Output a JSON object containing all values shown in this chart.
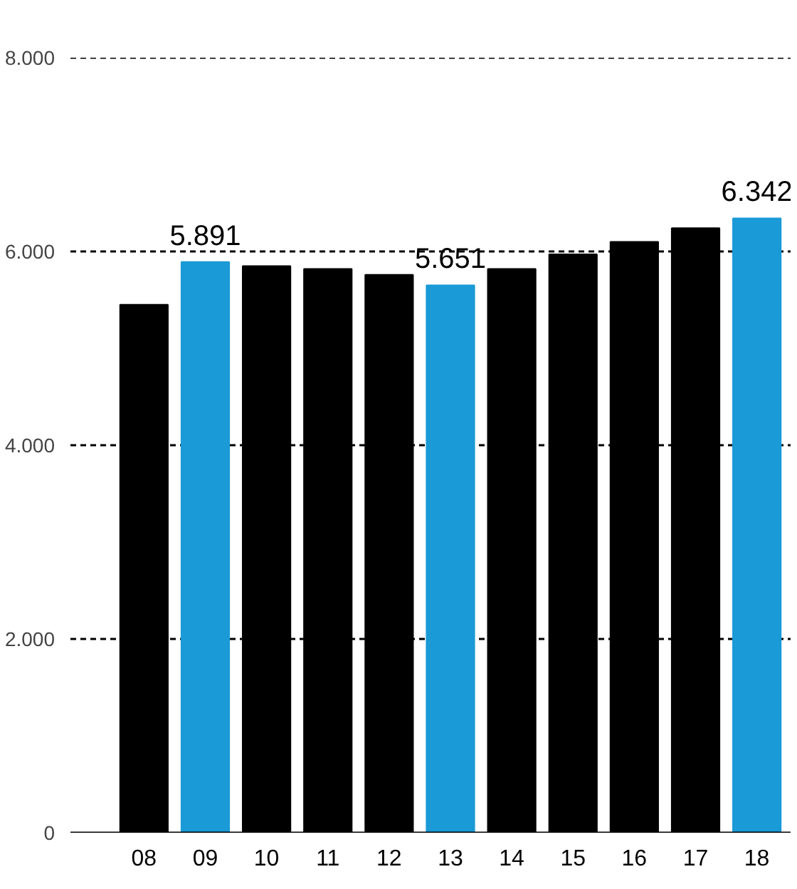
{
  "chart_data": {
    "type": "bar",
    "categories": [
      "08",
      "09",
      "10",
      "11",
      "12",
      "13",
      "14",
      "15",
      "16",
      "17",
      "18"
    ],
    "values": [
      5450,
      5891,
      5850,
      5820,
      5760,
      5651,
      5820,
      5970,
      6100,
      6240,
      6342
    ],
    "colors": [
      "#000000",
      "#1a9ad6",
      "#000000",
      "#000000",
      "#000000",
      "#1a9ad6",
      "#000000",
      "#000000",
      "#000000",
      "#000000",
      "#1a9ad6"
    ],
    "value_labels": [
      null,
      "5.891",
      null,
      null,
      null,
      "5.651",
      null,
      null,
      null,
      null,
      "6.342"
    ],
    "ylim": [
      0,
      8000
    ],
    "yticks": [
      {
        "value": 0,
        "label": "0"
      },
      {
        "value": 2000,
        "label": "2.000"
      },
      {
        "value": 4000,
        "label": "4.000"
      },
      {
        "value": 6000,
        "label": "6.000"
      },
      {
        "value": 8000,
        "label": "8.000"
      }
    ],
    "grid": "y"
  }
}
